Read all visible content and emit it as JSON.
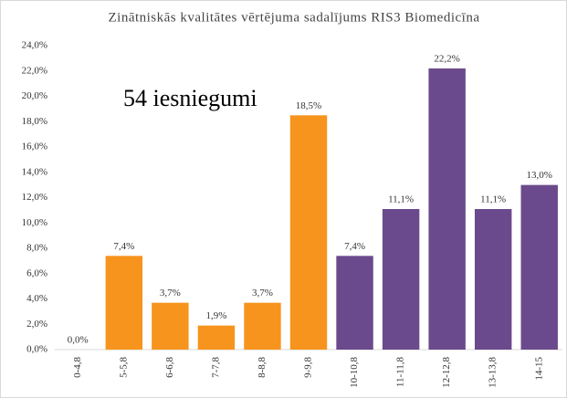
{
  "chart_data": {
    "type": "bar",
    "title": "Zinātniskās kvalitātes vērtējuma sadalījums RIS3 Biomedicīna",
    "annotation": "54 iesniegumi",
    "categories": [
      "0-4,8",
      "5-5,8",
      "6-6,8",
      "7-7,8",
      "8-8,8",
      "9-9,8",
      "10-10,8",
      "11-11,8",
      "12-12,8",
      "13-13,8",
      "14-15"
    ],
    "values": [
      0,
      7.4,
      3.7,
      1.9,
      3.7,
      18.5,
      7.4,
      11.1,
      22.2,
      11.1,
      13.0
    ],
    "value_labels": [
      "0,0%",
      "7,4%",
      "3,7%",
      "1,9%",
      "3,7%",
      "18,5%",
      "7,4%",
      "11,1%",
      "22,2%",
      "11,1%",
      "13,0%"
    ],
    "colors": [
      "#f7941d",
      "#f7941d",
      "#f7941d",
      "#f7941d",
      "#f7941d",
      "#f7941d",
      "#6a4a8c",
      "#6a4a8c",
      "#6a4a8c",
      "#6a4a8c",
      "#6a4a8c"
    ],
    "ylim": [
      0,
      24
    ],
    "yticks": [
      {
        "value": 0,
        "label": "0,0%"
      },
      {
        "value": 2,
        "label": "2,0%"
      },
      {
        "value": 4,
        "label": "4,0%"
      },
      {
        "value": 6,
        "label": "6,0%"
      },
      {
        "value": 8,
        "label": "8,0%"
      },
      {
        "value": 10,
        "label": "10,0%"
      },
      {
        "value": 12,
        "label": "12,0%"
      },
      {
        "value": 14,
        "label": "14,0%"
      },
      {
        "value": 16,
        "label": "16,0%"
      },
      {
        "value": 18,
        "label": "18,0%"
      },
      {
        "value": 20,
        "label": "20,0%"
      },
      {
        "value": 22,
        "label": "22,0%"
      },
      {
        "value": 24,
        "label": "24,0%"
      }
    ],
    "grid": false
  }
}
